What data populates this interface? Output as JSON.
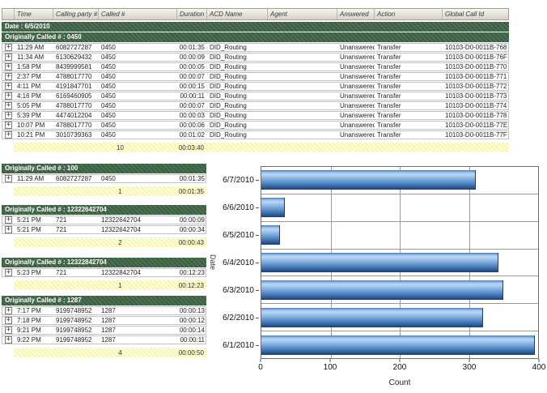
{
  "report": {
    "expand_icon": "+",
    "columns": [
      "Time",
      "Calling party #",
      "Called #",
      "Duration",
      "ACD Name",
      "Agent",
      "Answered",
      "Action",
      "Global Call Id"
    ],
    "date_band": "Date : 6/5/2010",
    "main_group": {
      "label": "Originally Called # : 0450",
      "rows": [
        {
          "time": "11:29 AM",
          "calling": "6082727287",
          "called": "0450",
          "duration": "00:01:35",
          "acd": "DID_Routing",
          "agent": "",
          "answered": "Unanswered",
          "action": "Transfer",
          "gid": "10103-D0-0011B-768"
        },
        {
          "time": "11:34 AM",
          "calling": "6130629432",
          "called": "0450",
          "duration": "00:00:09",
          "acd": "DID_Routing",
          "agent": "",
          "answered": "Unanswered",
          "action": "Transfer",
          "gid": "10103-D0-0011B-76F"
        },
        {
          "time": "1:58 PM",
          "calling": "8439999581",
          "called": "0450",
          "duration": "00:00:05",
          "acd": "DID_Routing",
          "agent": "",
          "answered": "Unanswered",
          "action": "Transfer",
          "gid": "10103-D0-0011B-770"
        },
        {
          "time": "2:37 PM",
          "calling": "4788017770",
          "called": "0450",
          "duration": "00:00:07",
          "acd": "DID_Routing",
          "agent": "",
          "answered": "Unanswered",
          "action": "Transfer",
          "gid": "10103-D0-0011B-771"
        },
        {
          "time": "4:11 PM",
          "calling": "4191847701",
          "called": "0450",
          "duration": "00:00:15",
          "acd": "DID_Routing",
          "agent": "",
          "answered": "Unanswered",
          "action": "Transfer",
          "gid": "10103-D0-0011B-772"
        },
        {
          "time": "4:16 PM",
          "calling": "6169460905",
          "called": "0450",
          "duration": "00:00:11",
          "acd": "DID_Routing",
          "agent": "",
          "answered": "Unanswered",
          "action": "Transfer",
          "gid": "10103-D0-0011B-773"
        },
        {
          "time": "5:05 PM",
          "calling": "4788017770",
          "called": "0450",
          "duration": "00:00:07",
          "acd": "DID_Routing",
          "agent": "",
          "answered": "Unanswered",
          "action": "Transfer",
          "gid": "10103-D0-0011B-774"
        },
        {
          "time": "5:39 PM",
          "calling": "4474012204",
          "called": "0450",
          "duration": "00:00:03",
          "acd": "DID_Routing",
          "agent": "",
          "answered": "Unanswered",
          "action": "Transfer",
          "gid": "10103-D0-0011B-778"
        },
        {
          "time": "10:07 PM",
          "calling": "4788017770",
          "called": "0450",
          "duration": "00:00:06",
          "acd": "DID_Routing",
          "agent": "",
          "answered": "Unanswered",
          "action": "Transfer",
          "gid": "10103-D0-0011B-77E"
        },
        {
          "time": "10:21 PM",
          "calling": "3010739363",
          "called": "0450",
          "duration": "00:01:02",
          "acd": "DID_Routing",
          "agent": "",
          "answered": "Unanswered",
          "action": "Transfer",
          "gid": "10103-D0-0011B-77F"
        }
      ],
      "summary": {
        "count": "10",
        "total": "00:03:40"
      }
    },
    "groups": [
      {
        "label": "Originally Called # : 100",
        "rows": [
          {
            "time": "11:29 AM",
            "calling": "6082727287",
            "called": "0450",
            "duration": "00:01:35"
          }
        ],
        "summary": {
          "count": "1",
          "total": "00:01:35"
        }
      },
      {
        "label": "Originally Called # : 12322642704",
        "rows": [
          {
            "time": "5:21 PM",
            "calling": "721",
            "called": "12322642704",
            "duration": "00:00:09"
          },
          {
            "time": "5:21 PM",
            "calling": "721",
            "called": "12322642704",
            "duration": "00:00:34"
          }
        ],
        "summary": {
          "count": "2",
          "total": "00:00:43"
        }
      },
      {
        "label": "Originally Called # : 12322842704",
        "rows": [
          {
            "time": "5:23 PM",
            "calling": "721",
            "called": "12322842704",
            "duration": "00:12:23"
          }
        ],
        "summary": {
          "count": "1",
          "total": "00:12:23"
        }
      },
      {
        "label": "Originally Called # : 1287",
        "rows": [
          {
            "time": "7:17 PM",
            "calling": "9199748952",
            "called": "1287",
            "duration": "00:00:13"
          },
          {
            "time": "7:18 PM",
            "calling": "9199748952",
            "called": "1287",
            "duration": "00:00:12"
          },
          {
            "time": "9:21 PM",
            "calling": "9199748952",
            "called": "1287",
            "duration": "00:00:14"
          },
          {
            "time": "9:22 PM",
            "calling": "9199748952",
            "called": "1287",
            "duration": "00:00:11"
          }
        ],
        "summary": {
          "count": "4",
          "total": "00:00:50"
        }
      }
    ]
  },
  "chart_data": {
    "type": "bar",
    "orientation": "horizontal",
    "categories": [
      "6/7/2010",
      "6/6/2010",
      "6/5/2010",
      "6/4/2010",
      "6/3/2010",
      "6/2/2010",
      "6/1/2010"
    ],
    "values": [
      309,
      33,
      26,
      341,
      349,
      319,
      394
    ],
    "title": "",
    "xlabel": "Count",
    "ylabel": "Date",
    "xlim": [
      0,
      400
    ],
    "xticks": [
      0,
      100,
      200,
      300,
      400
    ],
    "grid": true,
    "legend_position": "none"
  },
  "colors": {
    "group_band_green": "#3f6045",
    "summary_yellow": "#fbf8c6",
    "bar_blue": "#5b8fc9",
    "header_gray": "#dcd9d0",
    "gridline_gray": "#9a9a9a"
  }
}
